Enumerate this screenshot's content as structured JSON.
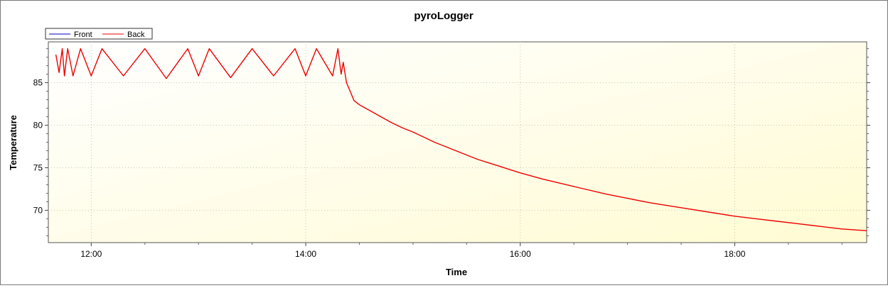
{
  "chart_data": {
    "type": "line",
    "title": "pyroLogger",
    "xlabel": "Time",
    "ylabel": "Temperature",
    "x_unit": "hours (time of day)",
    "xlim": [
      11.6,
      19.23
    ],
    "ylim": [
      66.2,
      89.8
    ],
    "xticks": [
      {
        "value": 12,
        "label": "12:00"
      },
      {
        "value": 14,
        "label": "14:00"
      },
      {
        "value": 16,
        "label": "16:00"
      },
      {
        "value": 18,
        "label": "18:00"
      }
    ],
    "yticks": [
      {
        "value": 70,
        "label": "70"
      },
      {
        "value": 75,
        "label": "75"
      },
      {
        "value": 80,
        "label": "80"
      },
      {
        "value": 85,
        "label": "85"
      }
    ],
    "grid": true,
    "legend": {
      "position": "top-left",
      "entries": [
        "Front",
        "Back"
      ]
    },
    "series": [
      {
        "name": "Front",
        "color": "#0000cc",
        "x": [],
        "y": []
      },
      {
        "name": "Back",
        "color": "#ee0000",
        "x": [
          11.67,
          11.7,
          11.73,
          11.75,
          11.78,
          11.83,
          11.9,
          12.0,
          12.1,
          12.3,
          12.5,
          12.7,
          12.9,
          13.0,
          13.1,
          13.3,
          13.5,
          13.7,
          13.9,
          14.0,
          14.1,
          14.25,
          14.3,
          14.33,
          14.35,
          14.38,
          14.42,
          14.45,
          14.5,
          14.6,
          14.7,
          14.8,
          14.9,
          15.0,
          15.1,
          15.2,
          15.3,
          15.4,
          15.5,
          15.6,
          15.7,
          15.8,
          15.9,
          16.0,
          16.2,
          16.4,
          16.6,
          16.8,
          17.0,
          17.2,
          17.4,
          17.6,
          17.8,
          18.0,
          18.2,
          18.4,
          18.6,
          18.8,
          19.0,
          19.23
        ],
        "y": [
          88.3,
          86.2,
          89.0,
          85.8,
          89.0,
          85.8,
          89.0,
          85.8,
          89.0,
          85.8,
          89.0,
          85.5,
          89.0,
          85.8,
          89.0,
          85.6,
          89.0,
          85.8,
          89.0,
          85.8,
          89.0,
          85.8,
          89.0,
          86.0,
          87.4,
          85.0,
          83.8,
          82.9,
          82.4,
          81.7,
          81.0,
          80.3,
          79.7,
          79.2,
          78.6,
          78.0,
          77.5,
          77.0,
          76.5,
          76.0,
          75.6,
          75.2,
          74.8,
          74.4,
          73.7,
          73.1,
          72.5,
          71.9,
          71.4,
          70.9,
          70.5,
          70.1,
          69.7,
          69.3,
          69.0,
          68.7,
          68.4,
          68.1,
          67.8,
          67.6
        ]
      }
    ]
  }
}
